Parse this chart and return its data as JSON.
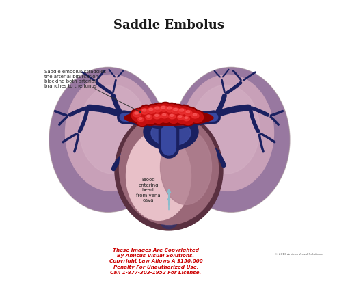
{
  "title": "Saddle Embolus",
  "title_fontsize": 13,
  "title_fontweight": "bold",
  "title_color": "#1a1a1a",
  "bg_color": "#ffffff",
  "annotation_text_1": "Saddle embolus straddles\nthe arterial bifurcation,\nblocking both arterial\nbranches to the lungs",
  "annotation_text_2": "Blood\nentering\nheart\nfrom vena\ncava",
  "copyright_text": "These Images Are Copyrighted\nBy Amicus Visual Solutions.\nCopyright Law Allows A $150,000\nPenalty For Unauthorized Use.\nCall 1-877-303-1952 For License.",
  "copyright_color": "#cc0000",
  "copyright_fontsize": 5.2,
  "lung_color": "#c8a0b8",
  "lung_dark_color": "#9878a0",
  "lung_inner_color": "#d4b0c4",
  "lung_lobe_color": "#b890a8",
  "heart_outer_color": "#7a5060",
  "heart_mid_color": "#9a6878",
  "heart_inner_color": "#e8c0c8",
  "heart_dark_color": "#5a3040",
  "artery_color": "#2a3888",
  "artery_dark_color": "#1a2060",
  "embolus_dark": "#8b0000",
  "embolus_mid": "#cc1111",
  "embolus_bright": "#ee3333",
  "embolus_highlight": "#ff6666",
  "arrow_color": "#8bbccc",
  "annotation_fontsize": 5.0,
  "small_text_color": "#222222",
  "copyright_right": "© 2013 Amicus Visual Solutions"
}
